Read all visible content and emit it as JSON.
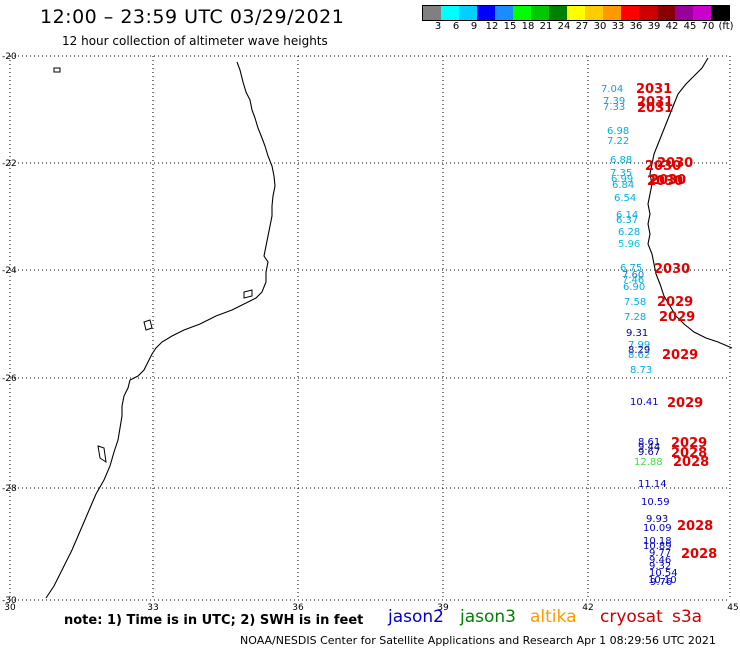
{
  "header": {
    "title": "12:00 – 23:59 UTC 03/29/2021",
    "subtitle": "12 hour collection of altimeter wave heights"
  },
  "scale": {
    "colors": [
      "#808080",
      "#00ffff",
      "#00d0ff",
      "#0000ff",
      "#1a8cff",
      "#00ff00",
      "#00c800",
      "#008000",
      "#ffff00",
      "#ffcc00",
      "#ff9900",
      "#ff0000",
      "#cc0000",
      "#880000",
      "#990099",
      "#cc00cc",
      "#000000"
    ],
    "labels": [
      "3",
      "6",
      "9",
      "12",
      "15",
      "18",
      "21",
      "24",
      "27",
      "30",
      "33",
      "36",
      "39",
      "42",
      "45",
      "70",
      "(ft)"
    ]
  },
  "axes": {
    "lat_ticks": [
      "-20",
      "-22",
      "-24",
      "-26",
      "-28",
      "-30"
    ],
    "lon_ticks": [
      "30",
      "33",
      "36",
      "39",
      "42",
      "45"
    ]
  },
  "footer": {
    "note": "note:  1) Time is in UTC;  2) SWH is in feet",
    "legend": [
      {
        "name": "jason2",
        "color": "#0000cc"
      },
      {
        "name": "jason3",
        "color": "#008000"
      },
      {
        "name": "altika",
        "color": "#ff9900"
      },
      {
        "name": "cryosat",
        "color": "#cc0000"
      },
      {
        "name": "s3a",
        "color": "#cc0000"
      }
    ],
    "credit": "NOAA/NESDIS Center for Satellite Applications and Research    Apr  1 08:29:56 UTC 2021"
  },
  "observations": {
    "wave_heights": [
      {
        "v": "7.04",
        "c": "#1a9ae0"
      },
      {
        "v": "7.39",
        "c": "#1a9ae0"
      },
      {
        "v": "7.33",
        "c": "#1a9ae0"
      },
      {
        "v": "6.98",
        "c": "#00b0e0"
      },
      {
        "v": "7.22",
        "c": "#00b0e0"
      },
      {
        "v": "6.88",
        "c": "#00b0e0"
      },
      {
        "v": "7.35",
        "c": "#00b0e0"
      },
      {
        "v": "6.99",
        "c": "#00b0e0"
      },
      {
        "v": "6.84",
        "c": "#00b0e0"
      },
      {
        "v": "6.54",
        "c": "#00b0e0"
      },
      {
        "v": "6.14",
        "c": "#00b0e0"
      },
      {
        "v": "6.37",
        "c": "#00b0e0"
      },
      {
        "v": "6.28",
        "c": "#00b0e0"
      },
      {
        "v": "5.96",
        "c": "#00c8e8"
      },
      {
        "v": "6.75",
        "c": "#00b0e0"
      },
      {
        "v": "7.60",
        "c": "#1a7ae0"
      },
      {
        "v": "7.46",
        "c": "#00b0e0"
      },
      {
        "v": "6.90",
        "c": "#00b0e0"
      },
      {
        "v": "7.58",
        "c": "#00b0e0"
      },
      {
        "v": "7.28",
        "c": "#00b0e0"
      },
      {
        "v": "9.31",
        "c": "#000099"
      },
      {
        "v": "7.99",
        "c": "#00b0e0"
      },
      {
        "v": "8.29",
        "c": "#000099"
      },
      {
        "v": "8.62",
        "c": "#00b0e0"
      },
      {
        "v": "8.73",
        "c": "#00b0e0"
      },
      {
        "v": "10.41",
        "c": "#0000cc"
      },
      {
        "v": "8.61",
        "c": "#0000cc"
      },
      {
        "v": "9.44",
        "c": "#000099"
      },
      {
        "v": "9.67",
        "c": "#000099"
      },
      {
        "v": "12.88",
        "c": "#40e040"
      },
      {
        "v": "11.14",
        "c": "#0000cc"
      },
      {
        "v": "10.59",
        "c": "#0000cc"
      },
      {
        "v": "9.93",
        "c": "#000099"
      },
      {
        "v": "10.09",
        "c": "#0000cc"
      },
      {
        "v": "10.18",
        "c": "#0000cc"
      },
      {
        "v": "10.89",
        "c": "#0000cc"
      },
      {
        "v": "9.77",
        "c": "#0000cc"
      },
      {
        "v": "9.46",
        "c": "#0000cc"
      },
      {
        "v": "9.32",
        "c": "#0000cc"
      },
      {
        "v": "10.54",
        "c": "#0000cc"
      },
      {
        "v": "10.10",
        "c": "#0000cc"
      },
      {
        "v": "9.76",
        "c": "#0000cc"
      }
    ],
    "pass_times": [
      "2031",
      "2031",
      "2031",
      "2030",
      "2030",
      "2030",
      "2030",
      "2030",
      "2029",
      "2029",
      "2029",
      "2029",
      "2029",
      "2028",
      "2028",
      "2028",
      "2028"
    ]
  }
}
